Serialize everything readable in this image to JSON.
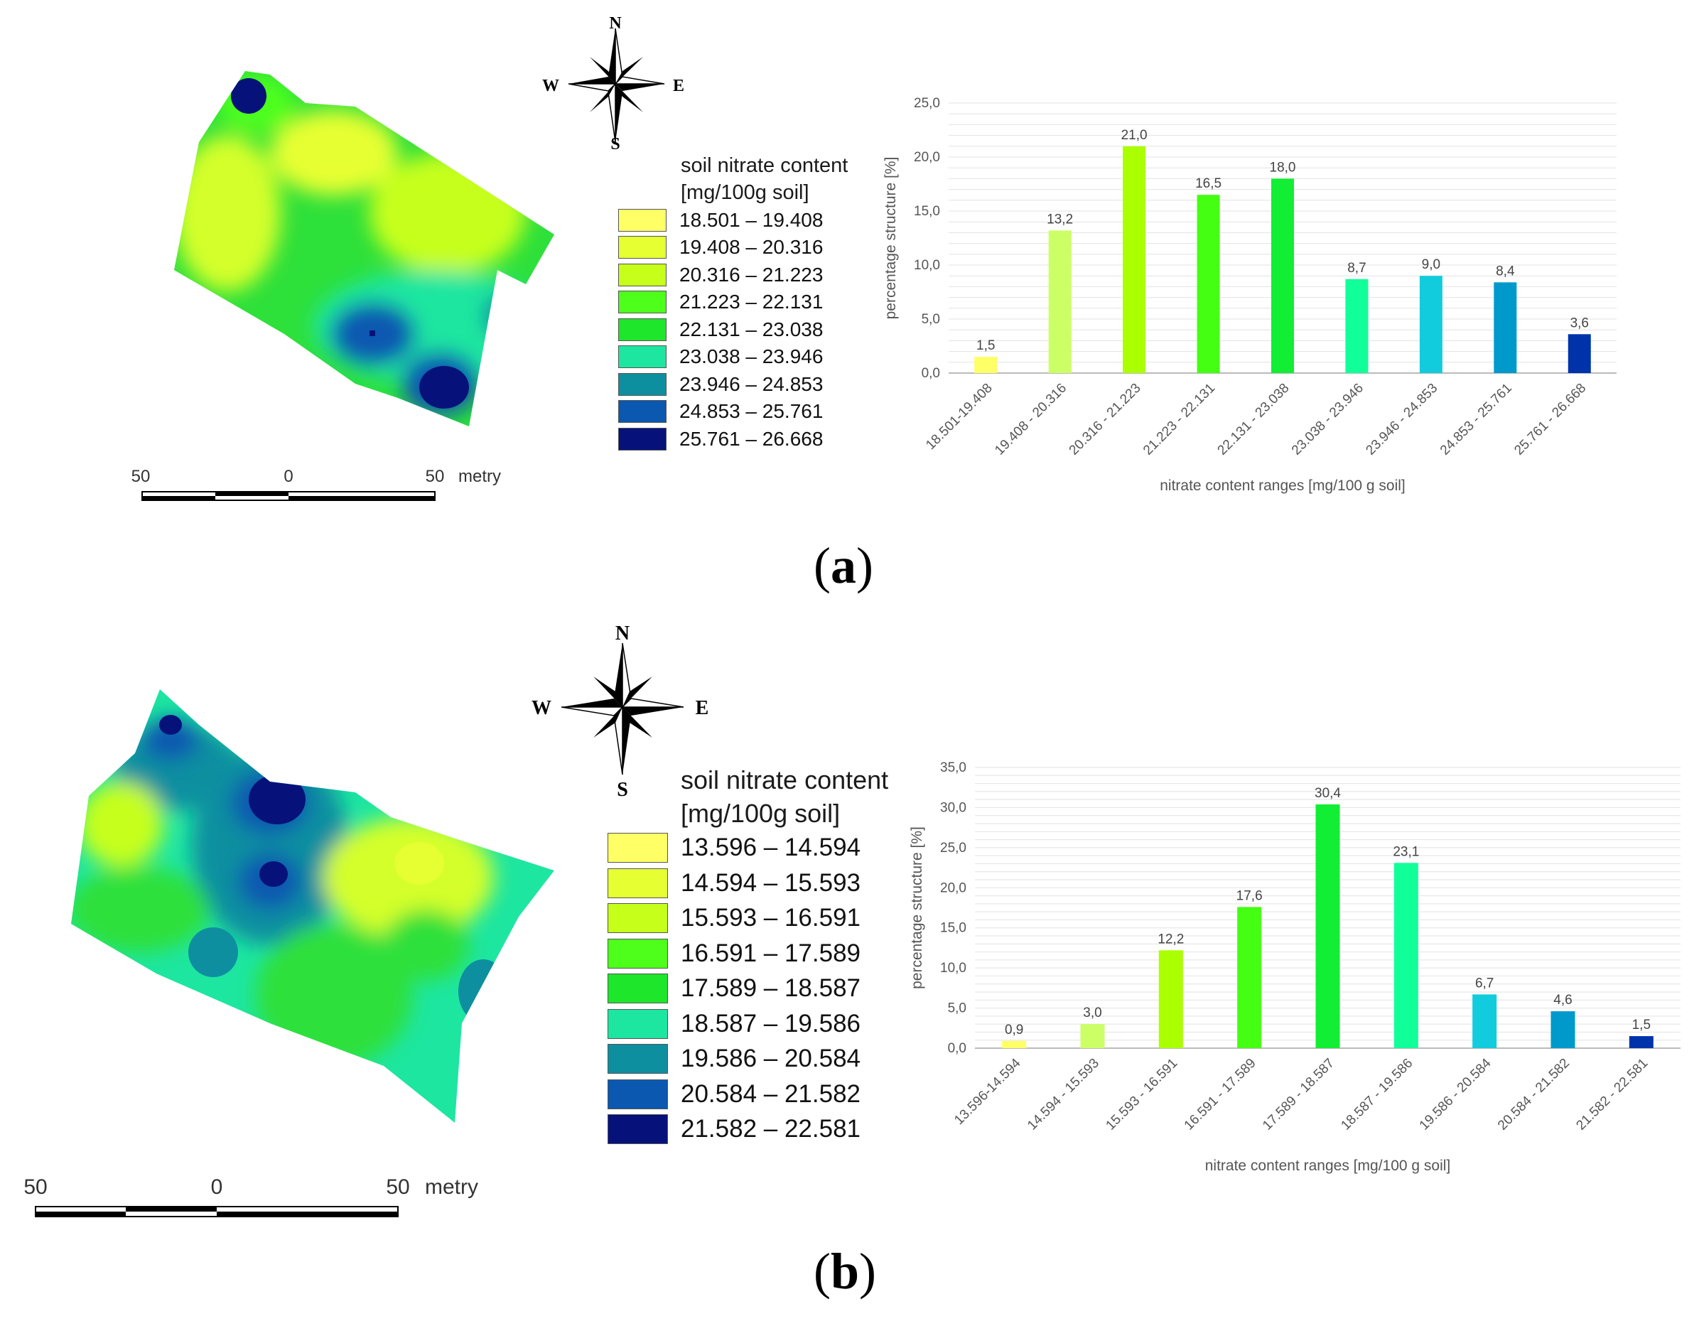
{
  "colors": [
    "#ffff66",
    "#e6ff33",
    "#c6ff1a",
    "#4dff1a",
    "#1ee62a",
    "#1de6a0",
    "#0e8fa0",
    "#0a58b0",
    "#06127a"
  ],
  "bar_colors": [
    "#ffff66",
    "#ccff66",
    "#aaff00",
    "#44ff11",
    "#11ee33",
    "#11ff99",
    "#11ccdd",
    "#0099cc",
    "#0033aa"
  ],
  "panels": [
    {
      "label": "a",
      "compass": {
        "n": "N",
        "s": "S",
        "e": "E",
        "w": "W"
      },
      "legend": {
        "title_line1": "soil nitrate content",
        "title_line2": "[mg/100g soil]",
        "items": [
          "18.501 – 19.408",
          "19.408 – 20.316",
          "20.316 – 21.223",
          "21.223 – 22.131",
          "22.131 – 23.038",
          "23.038 – 23.946",
          "23.946 – 24.853",
          "24.853 – 25.761",
          "25.761 – 26.668"
        ]
      },
      "scale_bar": {
        "left": "50",
        "mid": "0",
        "right": "50",
        "unit": "metry"
      }
    },
    {
      "label": "b",
      "compass": {
        "n": "N",
        "s": "S",
        "e": "E",
        "w": "W"
      },
      "legend": {
        "title_line1": "soil nitrate content",
        "title_line2": "[mg/100g soil]",
        "items": [
          "13.596 – 14.594",
          "14.594 – 15.593",
          "15.593 – 16.591",
          "16.591 – 17.589",
          "17.589 – 18.587",
          "18.587 – 19.586",
          "19.586 – 20.584",
          "20.584 – 21.582",
          "21.582 – 22.581"
        ]
      },
      "scale_bar": {
        "left": "50",
        "mid": "0",
        "right": "50",
        "unit": "metry"
      }
    }
  ],
  "chart_data": [
    {
      "type": "bar",
      "categories": [
        "18.501-19.408",
        "19.408 - 20.316",
        "20.316 - 21.223",
        "21.223 - 22.131",
        "22.131 - 23.038",
        "23.038 - 23.946",
        "23.946 - 24.853",
        "24.853 - 25.761",
        "25.761 - 26.668"
      ],
      "values": [
        1.5,
        13.2,
        21.0,
        16.5,
        18.0,
        8.7,
        9.0,
        8.4,
        3.6
      ],
      "value_labels": [
        "1,5",
        "13,2",
        "21,0",
        "16,5",
        "18,0",
        "8,7",
        "9,0",
        "8,4",
        "3,6"
      ],
      "yticks": [
        "0,0",
        "5,0",
        "10,0",
        "15,0",
        "20,0",
        "25,0"
      ],
      "ylim": [
        0,
        25
      ],
      "xlabel": "nitrate content ranges [mg/100 g soil]",
      "ylabel": "percentage structure [%]",
      "grid": true
    },
    {
      "type": "bar",
      "categories": [
        "13.596-14.594",
        "14.594 - 15.593",
        "15.593 - 16.591",
        "16.591 - 17.589",
        "17.589 - 18.587",
        "18.587 - 19.586",
        "19.586 - 20.584",
        "20.584 - 21.582",
        "21.582 - 22.581"
      ],
      "values": [
        0.9,
        3.0,
        12.2,
        17.6,
        30.4,
        23.1,
        6.7,
        4.6,
        1.5
      ],
      "value_labels": [
        "0,9",
        "3,0",
        "12,2",
        "17,6",
        "30,4",
        "23,1",
        "6,7",
        "4,6",
        "1,5"
      ],
      "yticks": [
        "0,0",
        "5,0",
        "10,0",
        "15,0",
        "20,0",
        "25,0",
        "30,0",
        "35,0"
      ],
      "ylim": [
        0,
        35
      ],
      "xlabel": "nitrate content ranges [mg/100 g soil]",
      "ylabel": "percentage structure [%]",
      "grid": true
    }
  ]
}
